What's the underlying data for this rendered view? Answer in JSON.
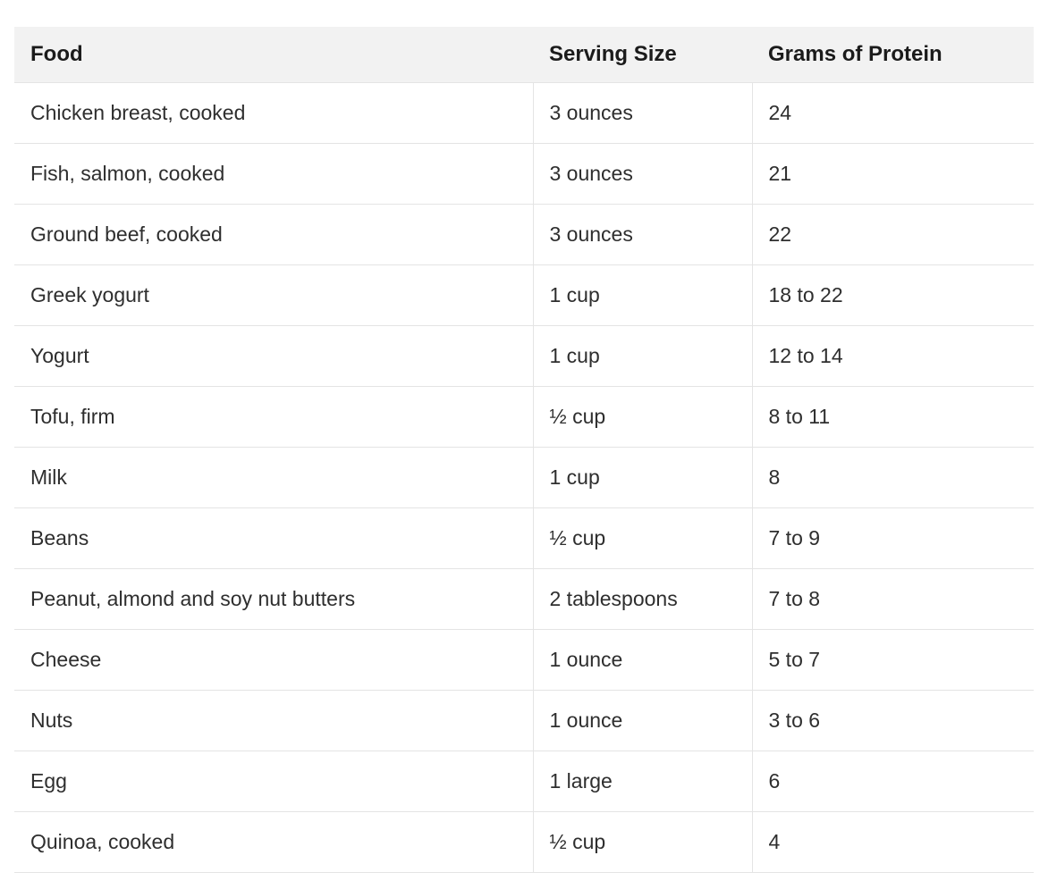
{
  "table": {
    "headers": [
      "Food",
      "Serving Size",
      "Grams of Protein"
    ],
    "rows": [
      [
        "Chicken breast, cooked",
        "3 ounces",
        "24"
      ],
      [
        "Fish, salmon, cooked",
        "3 ounces",
        "21"
      ],
      [
        "Ground beef, cooked",
        "3 ounces",
        "22"
      ],
      [
        "Greek yogurt",
        "1 cup",
        "18 to 22"
      ],
      [
        "Yogurt",
        "1 cup",
        "12 to 14"
      ],
      [
        "Tofu, firm",
        "½ cup",
        "8 to 11"
      ],
      [
        "Milk",
        "1 cup",
        "8"
      ],
      [
        "Beans",
        "½ cup",
        "7 to 9"
      ],
      [
        "Peanut, almond and soy nut butters",
        "2 tablespoons",
        "7 to 8"
      ],
      [
        "Cheese",
        "1 ounce",
        "5 to 7"
      ],
      [
        "Nuts",
        "1 ounce",
        "3 to 6"
      ],
      [
        "Egg",
        "1 large",
        "6"
      ],
      [
        "Quinoa, cooked",
        "½ cup",
        "4"
      ]
    ],
    "colors": {
      "header_bg": "#f2f2f2",
      "border": "#e4e4e4",
      "header_text": "#1b1b1b",
      "body_text": "#2e2e2e"
    }
  }
}
